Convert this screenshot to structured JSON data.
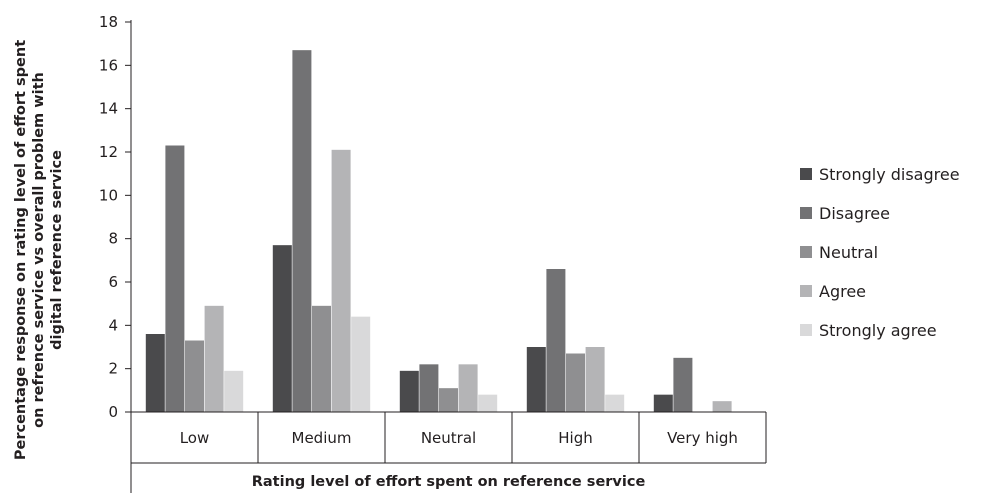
{
  "chart_data": {
    "type": "bar",
    "title": "",
    "xlabel": "Rating level of effort spent on reference service",
    "ylabel_lines": [
      "Percentage response on rating level of effort spent",
      "on refrence service vs overall problem with",
      "digital reference service"
    ],
    "ylim": [
      0,
      18
    ],
    "yticks": [
      0,
      2,
      4,
      6,
      8,
      10,
      12,
      14,
      16,
      18
    ],
    "grid": false,
    "legend_position": "right",
    "categories": [
      "Low",
      "Medium",
      "Neutral",
      "High",
      "Very high"
    ],
    "series": [
      {
        "name": "Strongly disagree",
        "color": "#4a4a4c",
        "values": [
          3.6,
          7.7,
          1.9,
          3.0,
          0.8
        ]
      },
      {
        "name": "Disagree",
        "color": "#727274",
        "values": [
          12.3,
          16.7,
          2.2,
          6.6,
          2.5
        ]
      },
      {
        "name": "Neutral",
        "color": "#8f8f91",
        "values": [
          3.3,
          4.9,
          1.1,
          2.7,
          0
        ]
      },
      {
        "name": "Agree",
        "color": "#b4b4b6",
        "values": [
          4.9,
          12.1,
          2.2,
          3.0,
          0.5
        ]
      },
      {
        "name": "Strongly agree",
        "color": "#d9d9da",
        "values": [
          1.9,
          4.4,
          0.8,
          0.8,
          0
        ]
      }
    ]
  }
}
